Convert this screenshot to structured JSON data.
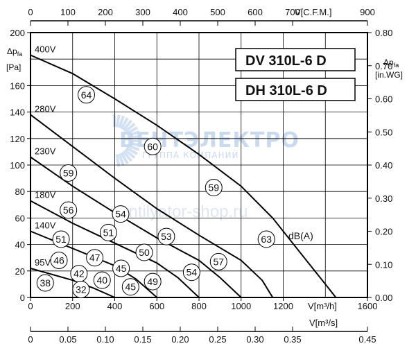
{
  "chart_data": {
    "type": "line",
    "models": [
      "DV 310L-6 D",
      "DH 310L-6 D"
    ],
    "axes": {
      "bottom_primary": {
        "label": "V[m³/h]",
        "range": [
          0,
          1600
        ],
        "ticks": [
          "0",
          "200",
          "400",
          "600",
          "800",
          "1000",
          "1200",
          "1600"
        ]
      },
      "bottom_secondary": {
        "label": "V[m³/s]",
        "range": [
          0,
          0.45
        ],
        "ticks": [
          "0",
          "0.05",
          "0.10",
          "0.15",
          "0.20",
          "0.25",
          "0.30",
          "0.35",
          "0.45"
        ]
      },
      "top": {
        "label": "V[C.F.M.]",
        "range": [
          0,
          900
        ],
        "ticks": [
          "0",
          "100",
          "200",
          "300",
          "400",
          "500",
          "600",
          "700",
          "900"
        ]
      },
      "left": {
        "label_main": "Δp",
        "label_sub": "fa",
        "label_unit": "[Pa]",
        "range": [
          0,
          200
        ],
        "ticks": [
          "0",
          "20",
          "40",
          "60",
          "80",
          "100",
          "120",
          "140",
          "160",
          "200"
        ]
      },
      "right": {
        "label_main": "Δp",
        "label_sub": "fa",
        "label_unit": "[in.WG]",
        "range": [
          0,
          0.8
        ],
        "ticks": [
          "0.00",
          "0.10",
          "0.20",
          "0.30",
          "0.40",
          "0.50",
          "0.60",
          "0.70",
          "0.80"
        ]
      }
    },
    "grid": true,
    "series": [
      {
        "name": "400V",
        "points": [
          [
            0,
            183
          ],
          [
            200,
            169
          ],
          [
            400,
            150
          ],
          [
            600,
            130
          ],
          [
            800,
            108
          ],
          [
            1000,
            84
          ],
          [
            1150,
            60
          ],
          [
            1300,
            30
          ],
          [
            1400,
            10
          ],
          [
            1450,
            0
          ]
        ]
      },
      {
        "name": "280V",
        "points": [
          [
            0,
            138
          ],
          [
            200,
            114
          ],
          [
            400,
            90
          ],
          [
            600,
            67
          ],
          [
            800,
            47
          ],
          [
            1000,
            28
          ],
          [
            1100,
            13
          ],
          [
            1150,
            0
          ]
        ]
      },
      {
        "name": "230V",
        "points": [
          [
            0,
            106
          ],
          [
            200,
            84
          ],
          [
            400,
            64
          ],
          [
            600,
            45
          ],
          [
            800,
            28
          ],
          [
            900,
            15
          ],
          [
            1000,
            0
          ]
        ]
      },
      {
        "name": "180V",
        "points": [
          [
            0,
            73
          ],
          [
            200,
            56
          ],
          [
            400,
            41
          ],
          [
            600,
            26
          ],
          [
            700,
            15
          ],
          [
            800,
            0
          ]
        ]
      },
      {
        "name": "140V",
        "points": [
          [
            0,
            50
          ],
          [
            200,
            37
          ],
          [
            400,
            24
          ],
          [
            500,
            14
          ],
          [
            600,
            0
          ]
        ]
      },
      {
        "name": "95V",
        "points": [
          [
            0,
            22
          ],
          [
            200,
            13
          ],
          [
            300,
            7
          ],
          [
            400,
            0
          ]
        ]
      }
    ],
    "sound_levels": [
      {
        "value": "64",
        "x": 265,
        "y": 153
      },
      {
        "value": "60",
        "x": 580,
        "y": 114
      },
      {
        "value": "59",
        "x": 870,
        "y": 83
      },
      {
        "value": "63",
        "x": 1120,
        "y": 44
      },
      {
        "value": "59",
        "x": 180,
        "y": 94
      },
      {
        "value": "54",
        "x": 428,
        "y": 63
      },
      {
        "value": "53",
        "x": 645,
        "y": 46
      },
      {
        "value": "57",
        "x": 893,
        "y": 27
      },
      {
        "value": "56",
        "x": 180,
        "y": 66
      },
      {
        "value": "51",
        "x": 370,
        "y": 49
      },
      {
        "value": "50",
        "x": 540,
        "y": 34
      },
      {
        "value": "54",
        "x": 765,
        "y": 19
      },
      {
        "value": "51",
        "x": 145,
        "y": 44
      },
      {
        "value": "47",
        "x": 305,
        "y": 30
      },
      {
        "value": "45",
        "x": 430,
        "y": 22
      },
      {
        "value": "49",
        "x": 580,
        "y": 12
      },
      {
        "value": "46",
        "x": 135,
        "y": 28
      },
      {
        "value": "42",
        "x": 230,
        "y": 18
      },
      {
        "value": "40",
        "x": 340,
        "y": 13
      },
      {
        "value": "45",
        "x": 475,
        "y": 8
      },
      {
        "value": "38",
        "x": 70,
        "y": 11
      },
      {
        "value": "32",
        "x": 240,
        "y": 6
      }
    ],
    "unit_label": "dB(A)",
    "watermark": {
      "brand": "ВЕНТЭЛЕКТРО",
      "tagline": "ГРУППА КОМПАНИЙ",
      "site": "ventilyator-shop.ru"
    }
  }
}
